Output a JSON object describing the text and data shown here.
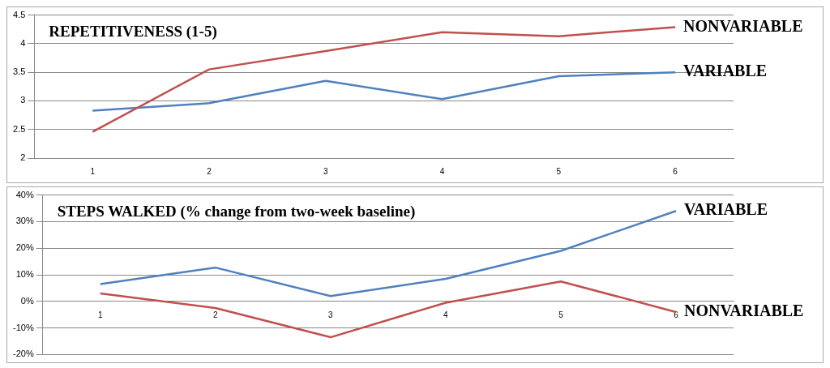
{
  "chart_data": [
    {
      "type": "line",
      "title": "REPETITIVENESS (1-5)",
      "categories": [
        "1",
        "2",
        "3",
        "4",
        "5",
        "6"
      ],
      "series": [
        {
          "name": "NONVARIABLE",
          "color": "#c0504d",
          "values": [
            2.46,
            3.55,
            3.87,
            4.2,
            4.13,
            4.29
          ]
        },
        {
          "name": "VARIABLE",
          "color": "#4f81bd",
          "values": [
            2.83,
            2.96,
            3.35,
            3.03,
            3.43,
            3.5
          ]
        }
      ],
      "ylim": [
        2,
        4.5
      ],
      "yticks": [
        2,
        2.5,
        3,
        3.5,
        4,
        4.5
      ],
      "grid": "y",
      "legend": false,
      "marker": "none",
      "line_style": "solid"
    },
    {
      "type": "line",
      "title": "STEPS WALKED (% change from two-week baseline)",
      "categories": [
        "1",
        "2",
        "3",
        "4",
        "5",
        "6"
      ],
      "series": [
        {
          "name": "VARIABLE",
          "color": "#4f81bd",
          "values": [
            6.5,
            12.7,
            2,
            8.5,
            19,
            34
          ]
        },
        {
          "name": "NONVARIABLE",
          "color": "#c0504d",
          "values": [
            3,
            -2.5,
            -13.5,
            -0.5,
            7.5,
            -4
          ]
        }
      ],
      "ylim": [
        -20,
        40
      ],
      "yticks": [
        {
          "value": -20,
          "label": "-20%"
        },
        {
          "value": -10,
          "label": "-10%"
        },
        {
          "value": 0,
          "label": "0%"
        },
        {
          "value": 10,
          "label": "10%"
        },
        {
          "value": 20,
          "label": "20%"
        },
        {
          "value": 30,
          "label": "30%"
        },
        {
          "value": 40,
          "label": "40%"
        }
      ],
      "grid": "y",
      "legend": false,
      "marker": "none",
      "line_style": "solid"
    }
  ]
}
